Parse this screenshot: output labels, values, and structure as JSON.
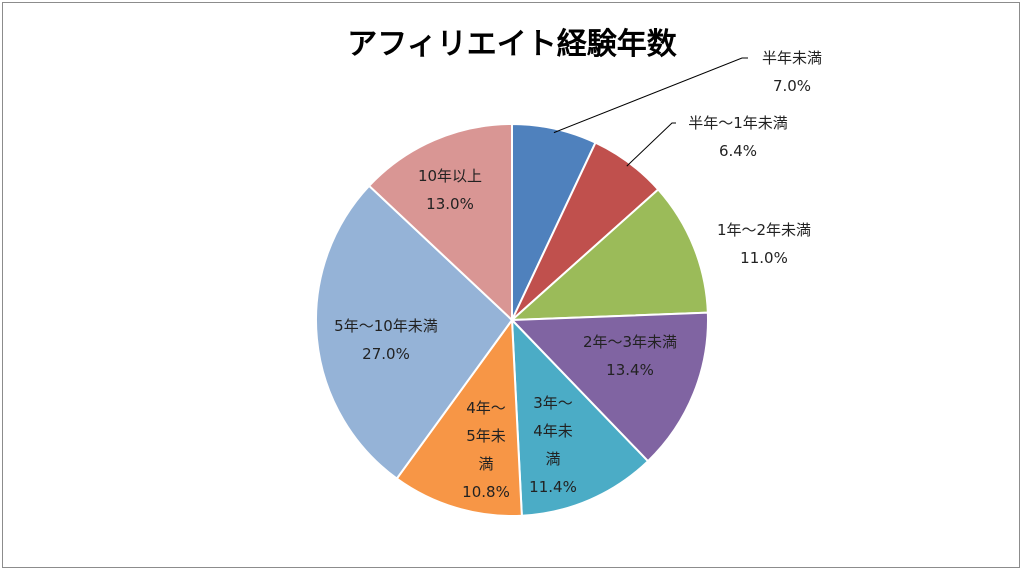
{
  "chart_data": {
    "type": "pie",
    "title": "アフィリエイト経験年数",
    "slices": [
      {
        "label": "半年未満",
        "value": 7.0,
        "value_label": "7.0%",
        "color": "#4F81BD"
      },
      {
        "label": "半年〜1年未満",
        "value": 6.4,
        "value_label": "6.4%",
        "color": "#C0504D"
      },
      {
        "label": "1年〜2年未満",
        "value": 11.0,
        "value_label": "11.0%",
        "color": "#9BBB59"
      },
      {
        "label": "2年〜3年未満",
        "value": 13.4,
        "value_label": "13.4%",
        "color": "#8064A2"
      },
      {
        "label": "3年〜4年未満",
        "value": 11.4,
        "value_label": "11.4%",
        "color": "#4BACC6"
      },
      {
        "label": "4年〜5年未満",
        "value": 10.8,
        "value_label": "10.8%",
        "color": "#F79646"
      },
      {
        "label": "5年〜10年未満",
        "value": 27.0,
        "value_label": "27.0%",
        "color": "#95B3D7"
      },
      {
        "label": "10年以上",
        "value": 13.0,
        "value_label": "13.0%",
        "color": "#D99694"
      }
    ],
    "start_angle": "12 o'clock",
    "direction": "clockwise",
    "legend": "none"
  }
}
